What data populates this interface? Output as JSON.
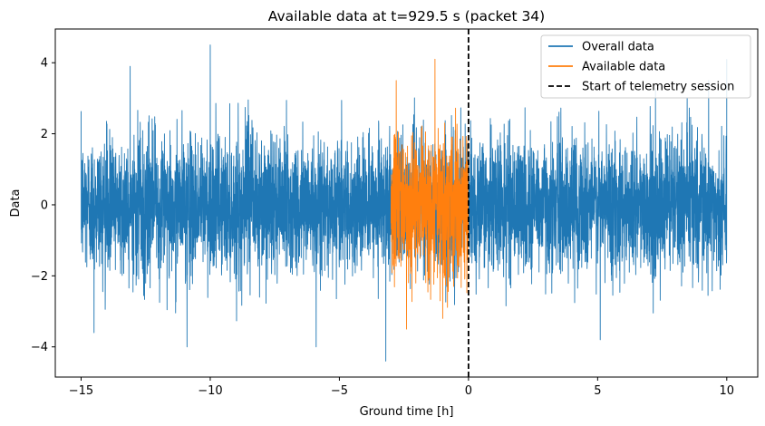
{
  "chart_data": {
    "type": "line",
    "title": "Available data at t=929.5 s (packet 34)",
    "xlabel": "Ground time [h]",
    "ylabel": "Data",
    "xlim": [
      -16,
      11.2
    ],
    "ylim": [
      -4.85,
      4.95
    ],
    "x_ticks": [
      -15,
      -10,
      -5,
      0,
      5,
      10
    ],
    "x_tick_labels": [
      "−15",
      "−10",
      "−5",
      "0",
      "5",
      "10"
    ],
    "y_ticks": [
      -4,
      -2,
      0,
      2,
      4
    ],
    "y_tick_labels": [
      "−4",
      "−2",
      "0",
      "2",
      "4"
    ],
    "grid": false,
    "legend_position": "top-right",
    "series": [
      {
        "name": "Overall data",
        "color": "#1f77b4",
        "style": "solid",
        "x_range": [
          -15,
          10
        ],
        "values_summary": {
          "typical_band": [
            -2.8,
            2.8
          ],
          "max": 4.5,
          "min": -4.4
        },
        "spikes": [
          {
            "x": -10.0,
            "y": 4.5
          },
          {
            "x": -13.1,
            "y": 3.9
          },
          {
            "x": 10.0,
            "y": 4.1
          },
          {
            "x": 9.3,
            "y": 3.5
          },
          {
            "x": -3.2,
            "y": -4.4
          },
          {
            "x": -10.9,
            "y": -4.0
          },
          {
            "x": -5.9,
            "y": -4.0
          },
          {
            "x": 5.1,
            "y": -3.8
          },
          {
            "x": -14.5,
            "y": -3.6
          }
        ]
      },
      {
        "name": "Available data",
        "color": "#ff7f0e",
        "style": "solid",
        "x_range": [
          -3.0,
          0
        ],
        "values_summary": {
          "typical_band": [
            -2.8,
            2.9
          ],
          "max": 4.1,
          "min": -3.5
        },
        "spikes": [
          {
            "x": -1.3,
            "y": 4.1
          },
          {
            "x": -2.8,
            "y": 3.5
          },
          {
            "x": -2.4,
            "y": -3.5
          },
          {
            "x": -1.0,
            "y": -3.2
          }
        ]
      },
      {
        "name": "Start of telemetry session",
        "color": "#000000",
        "style": "dashed",
        "vertical_line_x": 0
      }
    ]
  }
}
